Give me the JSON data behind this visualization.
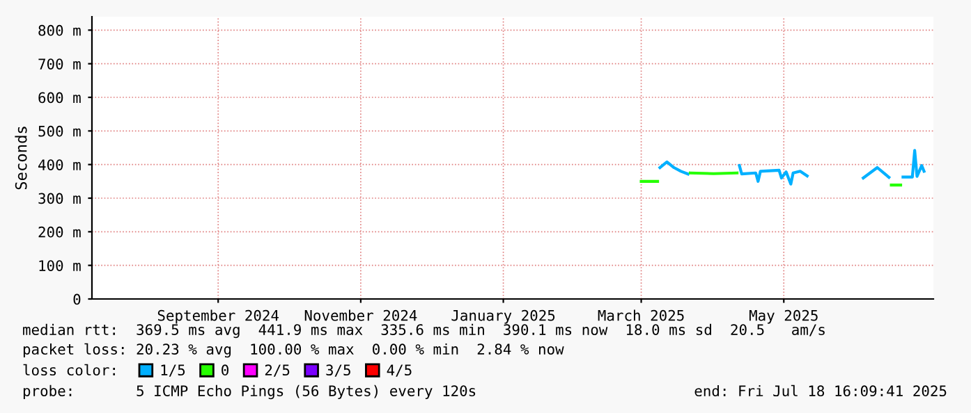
{
  "chart_data": {
    "type": "line",
    "ylabel": "Seconds",
    "x": [
      "2025-03-15",
      "2025-03-22",
      "2025-03-23",
      "2025-03-26",
      "2025-03-29",
      "2025-04-01",
      "2025-04-04",
      "2025-04-05",
      "2025-04-15",
      "2025-04-25",
      "2025-04-26",
      "2025-04-27",
      "2025-05-03",
      "2025-05-04",
      "2025-05-05",
      "2025-05-13",
      "2025-05-14",
      "2025-05-16",
      "2025-05-18",
      "2025-05-19",
      "2025-05-22",
      "2025-05-25",
      "2025-06-05",
      "2025-06-18",
      "2025-06-24",
      "2025-06-29",
      "2025-06-30",
      "2025-07-04",
      "2025-07-05",
      "2025-07-09",
      "2025-07-10",
      "2025-07-11",
      "2025-07-13",
      "2025-07-14"
    ],
    "series": [
      {
        "name": "1/5",
        "color": "#00b0ff",
        "values": [
          null,
          null,
          391,
          408,
          391,
          380,
          372,
          null,
          null,
          null,
          397,
          372,
          375,
          350,
          380,
          383,
          360,
          378,
          342,
          375,
          380,
          366,
          null,
          360,
          391,
          362,
          null,
          null,
          363,
          363,
          442,
          365,
          397,
          380
        ]
      },
      {
        "name": "0",
        "color": "#26ff00",
        "values": [
          350,
          350,
          null,
          null,
          null,
          null,
          null,
          375,
          373,
          375,
          null,
          null,
          null,
          null,
          null,
          null,
          null,
          null,
          null,
          null,
          null,
          null,
          null,
          null,
          null,
          null,
          339,
          339,
          null,
          null,
          null,
          null,
          null,
          null
        ]
      },
      {
        "name": "2/5",
        "color": "#ff00ff",
        "values": [
          null,
          null,
          null,
          null,
          null,
          null,
          null,
          null,
          null,
          null,
          null,
          null,
          null,
          null,
          null,
          null,
          null,
          null,
          null,
          null,
          null,
          null,
          null,
          null,
          null,
          null,
          null,
          null,
          null,
          null,
          null,
          null,
          null,
          null
        ]
      },
      {
        "name": "3/5",
        "color": "#7b00ff",
        "values": [
          null,
          null,
          null,
          null,
          null,
          null,
          null,
          null,
          null,
          null,
          null,
          null,
          null,
          null,
          null,
          null,
          null,
          null,
          null,
          null,
          null,
          null,
          null,
          null,
          null,
          null,
          null,
          null,
          null,
          null,
          null,
          null,
          null,
          null
        ]
      },
      {
        "name": "4/5",
        "color": "#ff0000",
        "values": [
          null,
          null,
          null,
          null,
          null,
          null,
          null,
          null,
          null,
          null,
          null,
          null,
          null,
          null,
          null,
          null,
          null,
          null,
          null,
          null,
          null,
          null,
          null,
          null,
          null,
          null,
          null,
          null,
          null,
          null,
          null,
          null,
          null,
          null
        ]
      }
    ],
    "xlim": [
      "2024-07-23",
      "2025-07-18"
    ],
    "xticks": [
      {
        "value": "2024-09-15",
        "label": "September 2024"
      },
      {
        "value": "2024-11-15",
        "label": "November 2024"
      },
      {
        "value": "2025-01-15",
        "label": "January 2025"
      },
      {
        "value": "2025-03-15",
        "label": "March 2025"
      },
      {
        "value": "2025-05-15",
        "label": "May 2025"
      }
    ],
    "ylim": [
      0,
      840
    ],
    "yticks": [
      0,
      {
        "value": 100,
        "label": "100 m"
      },
      {
        "value": 200,
        "label": "200 m"
      },
      {
        "value": 300,
        "label": "300 m"
      },
      {
        "value": 400,
        "label": "400 m"
      },
      {
        "value": 500,
        "label": "500 m"
      },
      {
        "value": 600,
        "label": "600 m"
      },
      {
        "value": 700,
        "label": "700 m"
      },
      {
        "value": 800,
        "label": "800 m"
      }
    ],
    "grid": true,
    "legend": "bottom",
    "legend_title": "loss color:",
    "marker": "none",
    "line_style": "solid",
    "annotations": [
      "median rtt:  369.5 ms avg  441.9 ms max  335.6 ms min  390.1 ms now  18.0 ms sd  20.5   am/s",
      "packet loss: 20.23 % avg  100.00 % max  0.00 % min  2.84 % now",
      "probe:       5 ICMP Echo Pings (56 Bytes) every 120s",
      "end: Fri Jul 18 16:09:41 2025"
    ]
  }
}
